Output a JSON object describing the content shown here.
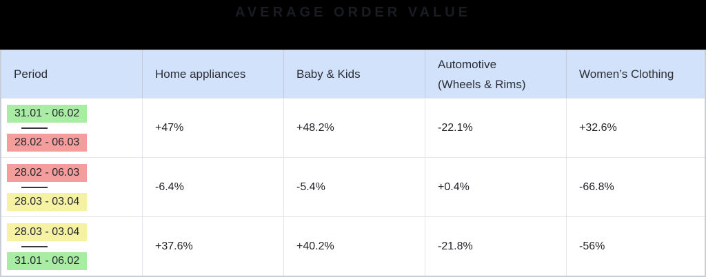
{
  "colors": {
    "page_background": "#000000",
    "title_text": "#1a1c24",
    "header_background": "#d2e2fa",
    "header_text": "#2b2e36",
    "body_text": "#1f2127",
    "highlight_green": "#a8eda3",
    "highlight_red": "#f49d9d",
    "highlight_yellow": "#f6f2a3",
    "border_outer": "#c8ced8",
    "border_inner": "#e3e5ea"
  },
  "chart_data": {
    "type": "table",
    "title": "AVERAGE ORDER VALUE",
    "header": {
      "period": "Period",
      "home_appliances": "Home appliances",
      "baby_kids": "Baby & Kids",
      "automotive_line1": "Automotive",
      "automotive_line2": "(Wheels & Rims)",
      "womens_clothing": "Women’s Clothing"
    },
    "rows": [
      {
        "period_top": {
          "label": "31.01 - 06.02",
          "highlight": "green"
        },
        "period_bottom": {
          "label": "28.02 - 06.03",
          "highlight": "red"
        },
        "home_appliances": "+47%",
        "baby_kids": "+48.2%",
        "automotive": "-22.1%",
        "womens_clothing": "+32.6%"
      },
      {
        "period_top": {
          "label": "28.02 - 06.03",
          "highlight": "red"
        },
        "period_bottom": {
          "label": "28.03 - 03.04",
          "highlight": "yellow"
        },
        "home_appliances": "-6.4%",
        "baby_kids": "-5.4%",
        "automotive": "+0.4%",
        "womens_clothing": "-66.8%"
      },
      {
        "period_top": {
          "label": "28.03 - 03.04",
          "highlight": "yellow"
        },
        "period_bottom": {
          "label": "31.01 - 06.02",
          "highlight": "green"
        },
        "home_appliances": "+37.6%",
        "baby_kids": "+40.2%",
        "automotive": "-21.8%",
        "womens_clothing": "-56%"
      }
    ]
  }
}
